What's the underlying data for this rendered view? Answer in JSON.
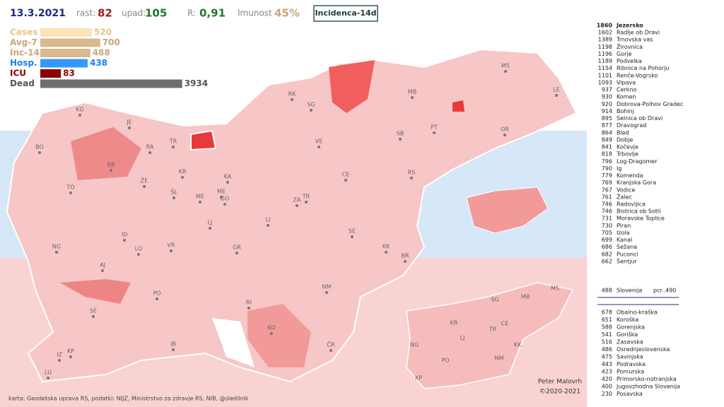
{
  "header": {
    "date": "13.3.2021",
    "rast_label": "rast:",
    "rast": "82",
    "upad_label": "upad:",
    "upad": "105",
    "r_label": "R:",
    "r": "0,91",
    "imunost_label": "Imunost",
    "imunost": "45%",
    "button": "Incidenca-14d"
  },
  "indicators": [
    {
      "name": "Cases",
      "value": 520,
      "color": "#fde3b8",
      "text_color": "#e8c48e"
    },
    {
      "name": "Avg-7",
      "value": 700,
      "color": "#d9b88e",
      "text_color": "#c9a67a"
    },
    {
      "name": "Inc-14",
      "value": 488,
      "color": "#d9b88e",
      "text_color": "#c9a67a"
    },
    {
      "name": "Hosp.",
      "value": 438,
      "color": "#3399ff",
      "text_color": "#1a80e6"
    },
    {
      "name": "ICU",
      "value": 83,
      "color": "#8b0000",
      "text_color": "#8b0000"
    },
    {
      "name": "Dead",
      "value": 3934,
      "color": "#6e6e6e",
      "text_color": "#555555"
    }
  ],
  "municipalities": [
    {
      "value": "1860",
      "name": "Jezersko"
    },
    {
      "value": "1602",
      "name": "Radlje ob Dravi"
    },
    {
      "value": "1389",
      "name": "Trnovska vas"
    },
    {
      "value": "1198",
      "name": "Žirovnica"
    },
    {
      "value": "1196",
      "name": "Gorje"
    },
    {
      "value": "1189",
      "name": "Podvelka"
    },
    {
      "value": "1154",
      "name": "Ribnica na Pohorju"
    },
    {
      "value": "1101",
      "name": "Renče-Vogrsko"
    },
    {
      "value": "1093",
      "name": "Vipava"
    },
    {
      "value": "937",
      "name": "Cerkno"
    },
    {
      "value": "930",
      "name": "Komen"
    },
    {
      "value": "920",
      "name": "Dobrova-Polhov Gradec"
    },
    {
      "value": "914",
      "name": "Bohinj"
    },
    {
      "value": "895",
      "name": "Selnica ob Dravi"
    },
    {
      "value": "877",
      "name": "Dravograd"
    },
    {
      "value": "864",
      "name": "Bled"
    },
    {
      "value": "849",
      "name": "Dobje"
    },
    {
      "value": "841",
      "name": "Kočevje"
    },
    {
      "value": "818",
      "name": "Trbovlje"
    },
    {
      "value": "796",
      "name": "Log-Dragomer"
    },
    {
      "value": "790",
      "name": "Ig"
    },
    {
      "value": "779",
      "name": "Komenda"
    },
    {
      "value": "769",
      "name": "Kranjska Gora"
    },
    {
      "value": "767",
      "name": "Vodice"
    },
    {
      "value": "761",
      "name": "Žalec"
    },
    {
      "value": "746",
      "name": "Radovljica"
    },
    {
      "value": "746",
      "name": "Bistrica ob Sotli"
    },
    {
      "value": "731",
      "name": "Moravske Toplice"
    },
    {
      "value": "730",
      "name": "Piran"
    },
    {
      "value": "705",
      "name": "Izola"
    },
    {
      "value": "699",
      "name": "Kanal"
    },
    {
      "value": "686",
      "name": "Sežana"
    },
    {
      "value": "682",
      "name": "Puconci"
    },
    {
      "value": "662",
      "name": "Šentjur"
    }
  ],
  "national": {
    "value": "488",
    "name": "Slovenija",
    "pcr": "pcr..490"
  },
  "regions": [
    {
      "value": "678",
      "name": "Obalno-kraška"
    },
    {
      "value": "651",
      "name": "Koroška"
    },
    {
      "value": "588",
      "name": "Gorenjska"
    },
    {
      "value": "541",
      "name": "Goriška"
    },
    {
      "value": "516",
      "name": "Zasavska"
    },
    {
      "value": "486",
      "name": "Osrednjeslovenska"
    },
    {
      "value": "475",
      "name": "Savinjska"
    },
    {
      "value": "443",
      "name": "Podravska"
    },
    {
      "value": "423",
      "name": "Pomurska"
    },
    {
      "value": "420",
      "name": "Primorsko-notranjska"
    },
    {
      "value": "400",
      "name": "Jugovzhodna Slovenija"
    },
    {
      "value": "230",
      "name": "Posavska"
    }
  ],
  "map_labels": [
    "KG",
    "JE",
    "BO",
    "RA",
    "TR",
    "BB",
    "KR",
    "KA",
    "ŽE",
    "ŠL",
    "ME",
    "ME",
    "GO",
    "TO",
    "LJ",
    "ID",
    "VR",
    "LO",
    "GR",
    "NG",
    "AJ",
    "PO",
    "SE",
    "RI",
    "KO",
    "ČR",
    "IB",
    "IZ",
    "KP",
    "LU",
    "RK",
    "SG",
    "MB",
    "MS",
    "LE",
    "PT",
    "OR",
    "SB",
    "VE",
    "CE",
    "RS",
    "ZA",
    "TR",
    "LI",
    "SE",
    "KK",
    "BR",
    "NM"
  ],
  "inset_labels": [
    "MS",
    "SG",
    "MB",
    "KR",
    "CE",
    "TR",
    "LJ",
    "KK",
    "NG",
    "PO",
    "NM",
    "KP"
  ],
  "author": "Peter Malovrh",
  "copyright": "©2020-2021",
  "footer": "karta: Geodetska uprava RS, podatki: NIJZ, Ministrstvo za zdravje RS, NIB, @sledilnik"
}
